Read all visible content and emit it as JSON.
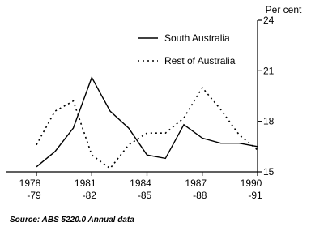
{
  "chart_data": {
    "type": "line",
    "y_axis_label": "Per cent",
    "source": "Source: ABS 5220.0 Annual data",
    "categories": [
      "1978-79",
      null,
      null,
      "1981-82",
      null,
      null,
      "1984-85",
      null,
      null,
      "1987-88",
      null,
      null,
      "1990-91"
    ],
    "series": [
      {
        "name": "South Australia",
        "color": "#000000",
        "style": "solid",
        "values": [
          15.3,
          16.2,
          17.6,
          20.6,
          18.6,
          17.6,
          16.0,
          15.8,
          17.8,
          17.0,
          16.7,
          16.7,
          16.5
        ]
      },
      {
        "name": "Rest of Australia",
        "color": "#000000",
        "style": "dotted",
        "values": [
          16.6,
          18.6,
          19.2,
          16.0,
          15.2,
          16.6,
          17.3,
          17.3,
          18.2,
          20.0,
          18.7,
          17.2,
          16.3
        ]
      }
    ],
    "ylim": [
      15,
      24
    ],
    "yticks": [
      15,
      18,
      21,
      24
    ],
    "grid": false
  }
}
